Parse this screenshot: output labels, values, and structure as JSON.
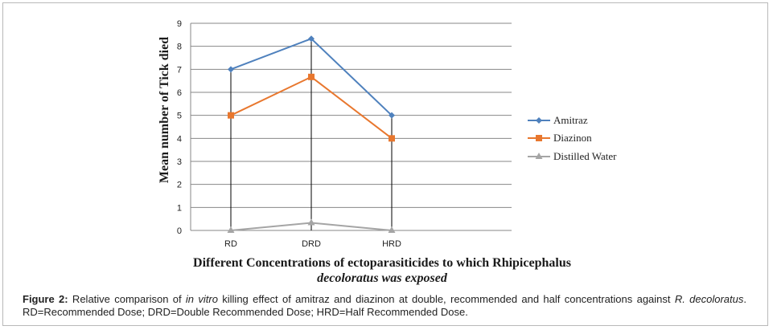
{
  "chart_data": {
    "type": "line",
    "categories": [
      "RD",
      "DRD",
      "HRD"
    ],
    "series": [
      {
        "name": "Amitraz",
        "values": [
          7,
          8.33,
          5
        ],
        "color": "#4f81bd",
        "marker": "diamond"
      },
      {
        "name": "Diazinon",
        "values": [
          5,
          6.67,
          4
        ],
        "color": "#e8772e",
        "marker": "square"
      },
      {
        "name": "Distilled Water",
        "values": [
          0,
          0.33,
          0
        ],
        "color": "#a5a5a5",
        "marker": "triangle"
      }
    ],
    "ylim": [
      0,
      9
    ],
    "yticks": [
      0,
      1,
      2,
      3,
      4,
      5,
      6,
      7,
      8,
      9
    ],
    "ylabel": "Mean number of Tick died",
    "xlabel": "Different Concentrations of ectoparasiticides to which Rhipicephalus decoloratus was exposed",
    "grid": true,
    "legend_position": "right"
  },
  "caption": {
    "label": "Figure 2:",
    "part1": " Relative comparison of ",
    "italic1": "in vitro",
    "part2": " killing effect of amitraz and diazinon at double, recommended and half concentrations against ",
    "italic2": "R. decoloratus",
    "part3": ". RD=Recommended Dose; DRD=Double Recommended Dose; HRD=Half Recommended Dose."
  },
  "xlabel_lines": {
    "line1": "Different Concentrations of ectoparasiticides to which Rhipicephalus",
    "line2": "decoloratus was exposed"
  }
}
